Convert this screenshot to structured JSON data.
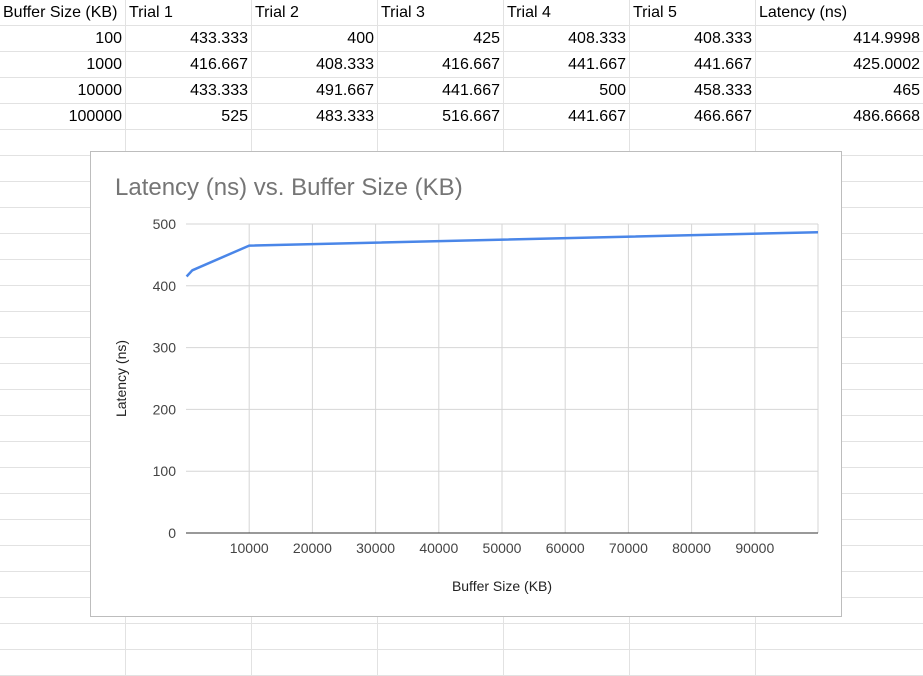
{
  "sheet": {
    "headers": [
      "Buffer Size (KB)",
      "Trial 1",
      "Trial 2",
      "Trial 3",
      "Trial 4",
      "Trial 5",
      "Latency (ns)"
    ],
    "rows": [
      [
        "100",
        "433.333",
        "400",
        "425",
        "408.333",
        "408.333",
        "414.9998"
      ],
      [
        "1000",
        "416.667",
        "408.333",
        "416.667",
        "441.667",
        "441.667",
        "425.0002"
      ],
      [
        "10000",
        "433.333",
        "491.667",
        "441.667",
        "500",
        "458.333",
        "465"
      ],
      [
        "100000",
        "525",
        "483.333",
        "516.667",
        "441.667",
        "466.667",
        "486.6668"
      ]
    ]
  },
  "chart_data": {
    "type": "line",
    "title": "Latency (ns) vs. Buffer Size (KB)",
    "xlabel": "Buffer Size (KB)",
    "ylabel": "Latency (ns)",
    "x": [
      100,
      1000,
      10000,
      100000
    ],
    "series": [
      {
        "values": [
          414.9998,
          425.0002,
          465,
          486.6668
        ],
        "color": "#4a86e8"
      }
    ],
    "xlim": [
      0,
      100000
    ],
    "ylim": [
      0,
      500
    ],
    "xticks": [
      10000,
      20000,
      30000,
      40000,
      50000,
      60000,
      70000,
      80000,
      90000
    ],
    "yticks": [
      0,
      100,
      200,
      300,
      400,
      500
    ],
    "grid": true,
    "legend": "none"
  }
}
